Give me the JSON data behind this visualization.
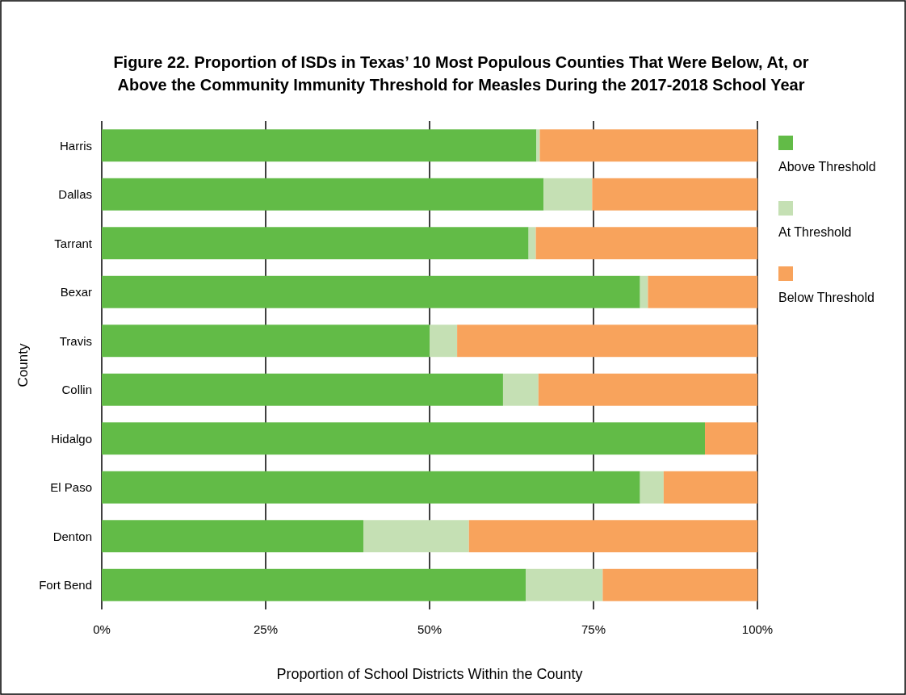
{
  "chart_data": {
    "type": "bar",
    "orientation": "horizontal",
    "stacked": true,
    "title": "Figure 22. Proportion of ISDs in Texas’ 10 Most Populous Counties That Were Below, At, or Above the Community Immunity Threshold for Measles During the 2017-2018 School Year",
    "xlabel": "Proportion of School Districts Within the County",
    "ylabel": "County",
    "categories": [
      "Harris",
      "Dallas",
      "Tarrant",
      "Bexar",
      "Travis",
      "Collin",
      "Hidalgo",
      "El Paso",
      "Denton",
      "Fort Bend"
    ],
    "series": [
      {
        "name": "Above Threshold",
        "color": "#62bb47",
        "values": [
          66.3,
          67.4,
          65.1,
          82.1,
          50.0,
          61.2,
          92.0,
          82.1,
          39.9,
          64.7
        ]
      },
      {
        "name": "At Threshold",
        "color": "#c5e0b4",
        "values": [
          0.5,
          7.4,
          1.1,
          1.2,
          4.2,
          5.4,
          0,
          3.6,
          16.1,
          11.7
        ]
      },
      {
        "name": "Below Threshold",
        "color": "#f8a35c",
        "values": [
          33.2,
          25.2,
          33.8,
          16.7,
          45.8,
          33.4,
          8.0,
          14.3,
          44.0,
          23.6
        ]
      }
    ],
    "xlim": [
      0,
      100
    ],
    "xticks": [
      {
        "value": 0,
        "label": "0%"
      },
      {
        "value": 25,
        "label": "25%"
      },
      {
        "value": 50,
        "label": "50%"
      },
      {
        "value": 75,
        "label": "75%"
      },
      {
        "value": 100,
        "label": "100%"
      }
    ],
    "grid": "x",
    "legend": "right"
  }
}
